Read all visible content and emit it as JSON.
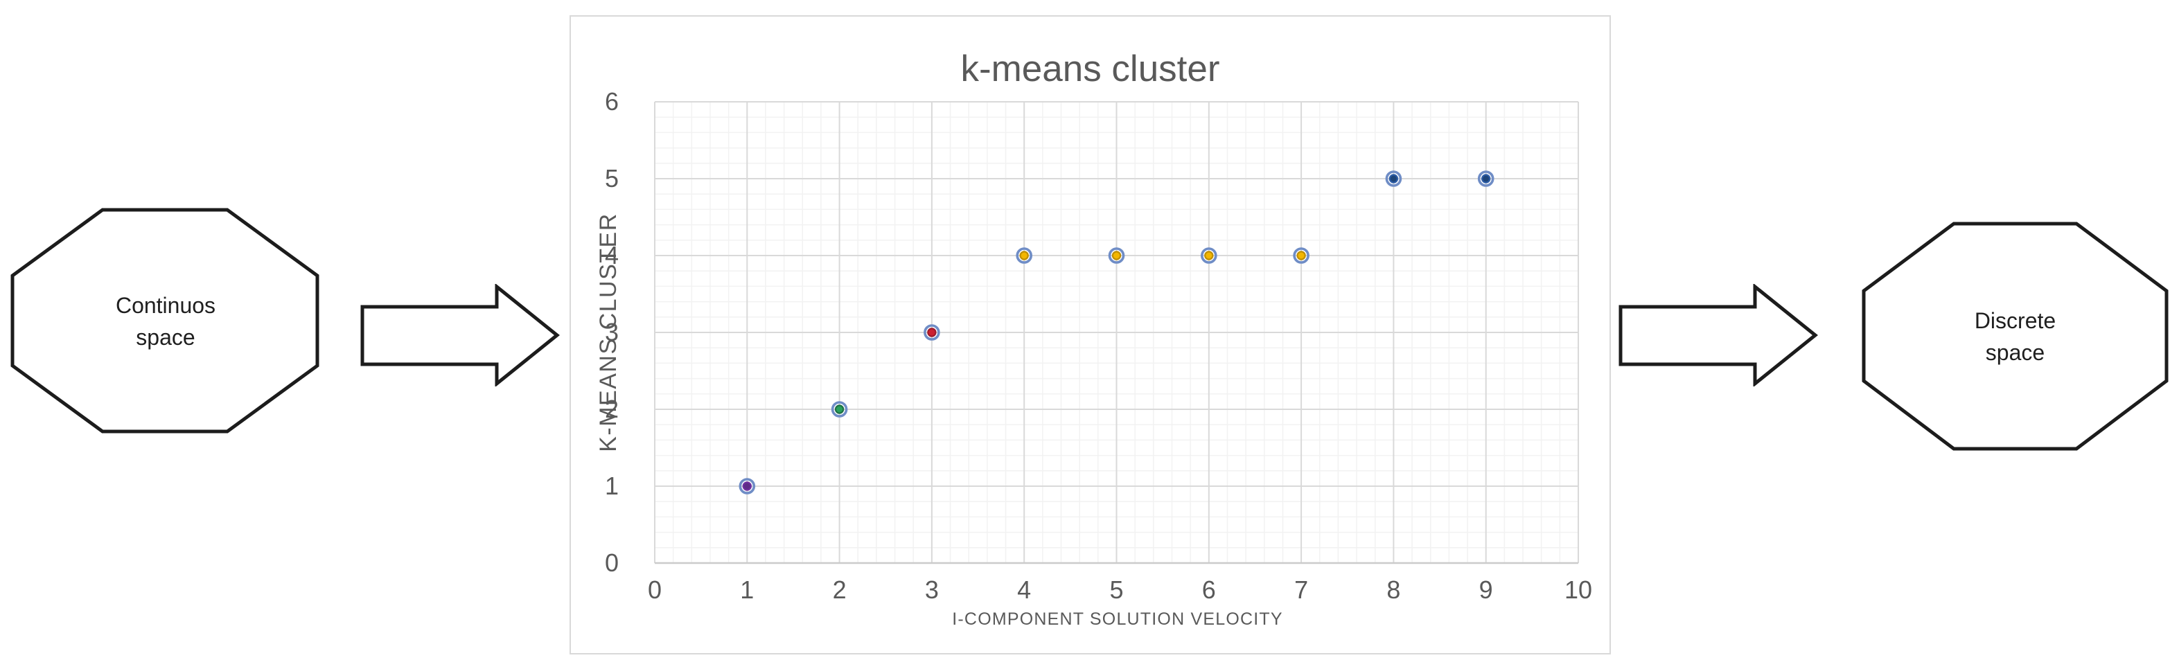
{
  "diagram": {
    "left_shape": {
      "label": "Continuos\nspace"
    },
    "right_shape": {
      "label": "Discrete\nspace"
    },
    "shape_outline_color": "#1c1c1c",
    "arrow_fill": "#ffffff"
  },
  "chart_data": {
    "type": "scatter",
    "title": "k-means cluster",
    "xlabel": "I-COMPONENT SOLUTION VELOCITY",
    "ylabel": "K-MEANS CLUSTER",
    "xlim": [
      0,
      10
    ],
    "ylim": [
      0,
      6
    ],
    "x_ticks": [
      "0",
      "1",
      "2",
      "3",
      "4",
      "5",
      "6",
      "7",
      "8",
      "9",
      "10"
    ],
    "y_ticks": [
      "0",
      "1",
      "2",
      "3",
      "4",
      "5",
      "6"
    ],
    "minor_grid_step": 0.2,
    "grid": true,
    "legend": false,
    "points": [
      {
        "x": 1,
        "y": 1,
        "fill": "#5e2d87",
        "edge": "#7030a0"
      },
      {
        "x": 2,
        "y": 2,
        "fill": "#28a05c",
        "edge": "#1e7145"
      },
      {
        "x": 3,
        "y": 3,
        "fill": "#cc2030",
        "edge": "#9e1b2c"
      },
      {
        "x": 4,
        "y": 4,
        "fill": "#f3b600",
        "edge": "#bf8f00"
      },
      {
        "x": 5,
        "y": 4,
        "fill": "#f3b600",
        "edge": "#bf8f00"
      },
      {
        "x": 6,
        "y": 4,
        "fill": "#f3b600",
        "edge": "#bf8f00"
      },
      {
        "x": 7,
        "y": 4,
        "fill": "#f3b600",
        "edge": "#bf8f00"
      },
      {
        "x": 8,
        "y": 5,
        "fill": "#1d4478",
        "edge": "#2c5ca6"
      },
      {
        "x": 9,
        "y": 5,
        "fill": "#1d4478",
        "edge": "#2c5ca6"
      }
    ],
    "style": {
      "marker_ring": "#6f8dc6",
      "major_grid": "#d9d9d9",
      "minor_grid": "#f2f2f2",
      "axis_line": "#cbcbcb",
      "text_color": "#595959",
      "panel_border": "#d9d9d9"
    }
  }
}
